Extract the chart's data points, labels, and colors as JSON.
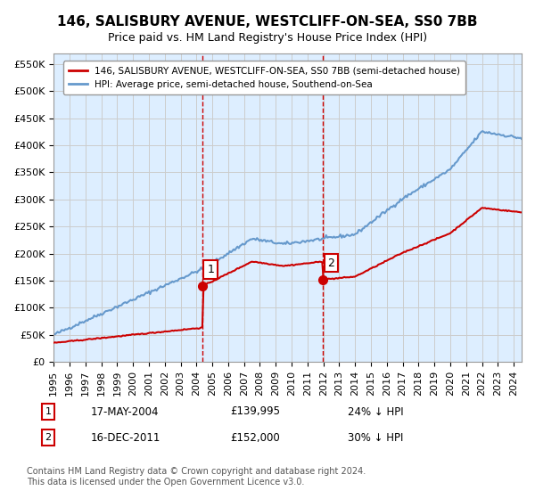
{
  "title": "146, SALISBURY AVENUE, WESTCLIFF-ON-SEA, SS0 7BB",
  "subtitle": "Price paid vs. HM Land Registry's House Price Index (HPI)",
  "ylabel_ticks": [
    0,
    50000,
    100000,
    150000,
    200000,
    250000,
    300000,
    350000,
    400000,
    450000,
    500000,
    550000
  ],
  "ylim": [
    0,
    570000
  ],
  "xlim_start": 1995.0,
  "xlim_end": 2024.5,
  "legend_property": "146, SALISBURY AVENUE, WESTCLIFF-ON-SEA, SS0 7BB (semi-detached house)",
  "legend_hpi": "HPI: Average price, semi-detached house, Southend-on-Sea",
  "sale1_x": 2004.37,
  "sale1_y": 139995,
  "sale1_label": "1",
  "sale1_date": "17-MAY-2004",
  "sale1_price": "£139,995",
  "sale1_info": "24% ↓ HPI",
  "sale2_x": 2011.96,
  "sale2_y": 152000,
  "sale2_label": "2",
  "sale2_date": "16-DEC-2011",
  "sale2_price": "£152,000",
  "sale2_info": "30% ↓ HPI",
  "property_color": "#cc0000",
  "hpi_color": "#6699cc",
  "grid_color": "#cccccc",
  "bg_color": "#ddeeff",
  "footnote": "Contains HM Land Registry data © Crown copyright and database right 2024.\nThis data is licensed under the Open Government Licence v3.0."
}
